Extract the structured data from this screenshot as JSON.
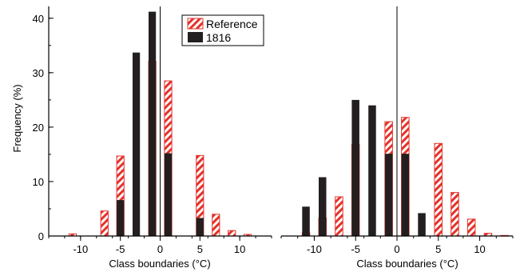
{
  "chart_data": [
    {
      "type": "bar",
      "panel": "left",
      "xlabel": "Class boundaries (°C)",
      "ylabel": "Frequency (%)",
      "xlim": [
        -14,
        14
      ],
      "ylim": [
        0,
        41
      ],
      "xticks": [
        -10,
        -5,
        0,
        5,
        10
      ],
      "yticks": [
        0,
        10,
        20,
        30,
        40
      ],
      "grid": false,
      "zero_line": true,
      "legend": {
        "position": "top-right",
        "entries": [
          "Reference",
          "1816"
        ]
      },
      "series": [
        {
          "name": "Reference",
          "x": [
            -11.0,
            -7.0,
            -5.0,
            -3.0,
            -1.0,
            1.0,
            3.0,
            5.0,
            7.0,
            9.0,
            11.0
          ],
          "values": [
            0.4,
            4.6,
            14.7,
            0,
            32.1,
            28.5,
            0,
            14.8,
            4.0,
            1.0,
            0.3
          ]
        },
        {
          "name": "1816",
          "x": [
            -9.0,
            -7.0,
            -5.0,
            -3.0,
            -1.0,
            1.0,
            3.0,
            5.0,
            7.0,
            9.0,
            11.0
          ],
          "values": [
            0,
            0,
            6.6,
            33.7,
            41.2,
            15.2,
            0,
            3.3,
            0,
            0,
            0
          ]
        }
      ]
    },
    {
      "type": "bar",
      "panel": "right",
      "xlabel": "Class boundaries (°C)",
      "ylabel": "",
      "xlim": [
        -14,
        14
      ],
      "ylim": [
        0,
        41
      ],
      "xticks": [
        -10,
        -5,
        0,
        5,
        10
      ],
      "yticks": [],
      "grid": false,
      "zero_line": true,
      "series": [
        {
          "name": "Reference",
          "x": [
            -13.0,
            -11.0,
            -9.0,
            -7.0,
            -5.0,
            -3.0,
            -1.0,
            1.0,
            3.0,
            5.0,
            7.0,
            9.0,
            11.0,
            13.0
          ],
          "values": [
            0,
            0.6,
            3.3,
            7.2,
            16.8,
            0,
            21.0,
            21.8,
            0,
            17.0,
            8.0,
            3.1,
            0.5,
            0.1
          ]
        },
        {
          "name": "1816",
          "x": [
            -13.0,
            -11.0,
            -9.0,
            -7.0,
            -5.0,
            -3.0,
            -1.0,
            1.0,
            3.0,
            5.0,
            7.0,
            9.0,
            11.0,
            13.0
          ],
          "values": [
            0,
            5.4,
            10.8,
            0,
            25.0,
            24.0,
            15.1,
            15.1,
            4.2,
            0,
            0,
            0,
            0,
            0
          ]
        }
      ]
    }
  ],
  "colors": {
    "reference_stripe": "#e4322b",
    "reference_bg": "#ffffff",
    "series_1816": "#231f20",
    "axis": "#000000"
  }
}
